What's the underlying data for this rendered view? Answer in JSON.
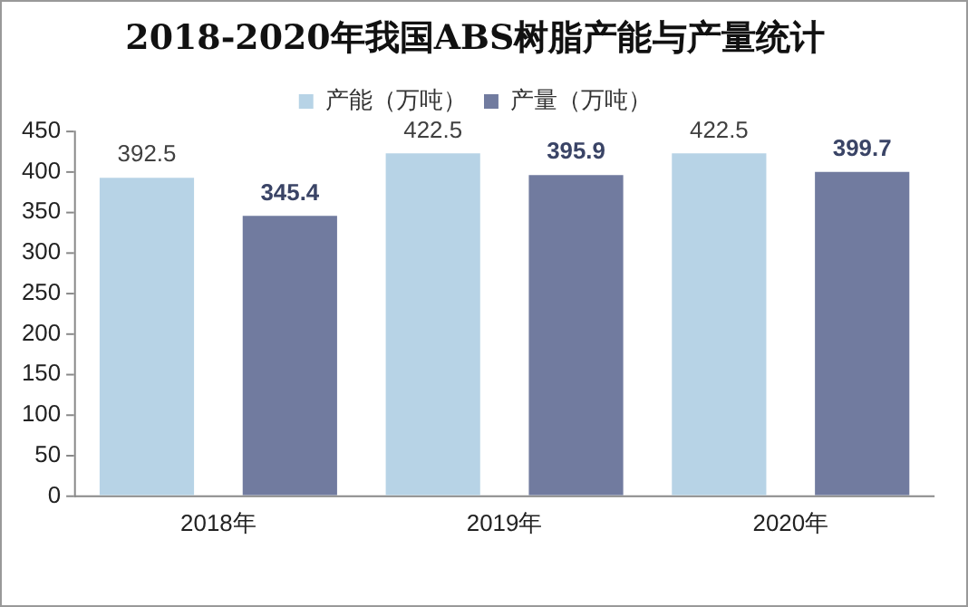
{
  "chart_data": {
    "type": "bar",
    "title": "2018-2020年我国ABS树脂产能与产量统计",
    "categories": [
      "2018年",
      "2019年",
      "2020年"
    ],
    "series": [
      {
        "name": "产能（万吨）",
        "color": "#b7d3e6",
        "values": [
          392.5,
          422.5,
          422.5
        ]
      },
      {
        "name": "产量（万吨）",
        "color": "#717b9f",
        "values": [
          345.4,
          395.9,
          399.7
        ]
      }
    ],
    "ylim": [
      0,
      450
    ],
    "yticks": [
      0,
      50,
      100,
      150,
      200,
      250,
      300,
      350,
      400,
      450
    ],
    "grid": false,
    "legend": "top",
    "data_labels": true
  }
}
